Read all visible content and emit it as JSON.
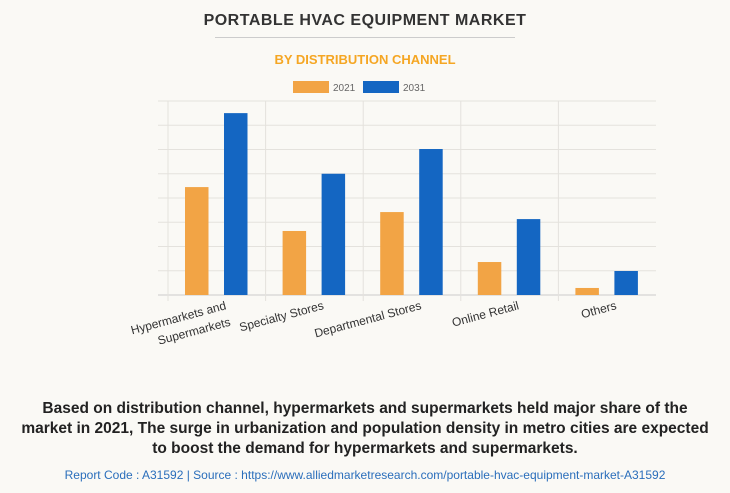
{
  "chart_data": {
    "type": "bar",
    "title": "PORTABLE HVAC EQUIPMENT MARKET",
    "subtitle": "BY DISTRIBUTION CHANNEL",
    "categories": [
      [
        "Hypermarkets and",
        "Supermarkets"
      ],
      [
        "Specialty Stores"
      ],
      [
        "Departmental Stores"
      ],
      [
        "Online Retail"
      ],
      [
        "Others"
      ]
    ],
    "series": [
      {
        "name": "2021",
        "color": "#f2a445",
        "values": [
          4.45,
          2.64,
          3.42,
          1.36,
          0.29
        ]
      },
      {
        "name": "2031",
        "color": "#1466c2",
        "values": [
          7.5,
          5.0,
          6.02,
          3.13,
          0.99
        ]
      }
    ],
    "ylim": [
      0,
      8
    ],
    "grid": true,
    "legend": "top-center",
    "xlabel": "",
    "ylabel": ""
  },
  "caption": "Based on distribution channel, hypermarkets and supermarkets held major share of the market in 2021, The surge in urbanization and population density in metro cities are expected to boost the demand for hypermarkets and supermarkets.",
  "source": "Report Code : A31592  |  Source : https://www.alliedmarketresearch.com/portable-hvac-equipment-market-A31592"
}
